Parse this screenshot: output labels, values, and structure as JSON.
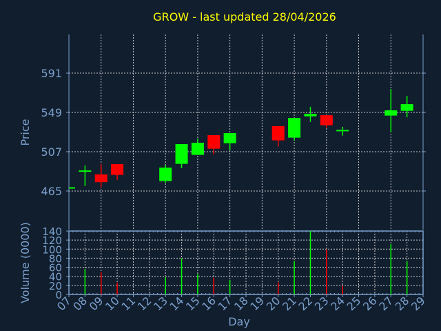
{
  "chart_data": [
    {
      "type": "candlestick",
      "title": "GROW - last updated 28/04/2026",
      "xlabel": "Day",
      "ylabel": "Price",
      "ylim": [
        423.7,
        632.3
      ],
      "yticks": [
        465,
        507,
        549,
        591
      ],
      "ytick_labels": [
        "465",
        "507",
        "549",
        "591"
      ],
      "grid": true,
      "colors": {
        "up": "#00ff00",
        "down": "#ff0000"
      },
      "x": [
        "07",
        "08",
        "09",
        "10",
        "13",
        "14",
        "15",
        "16",
        "17",
        "20",
        "21",
        "22",
        "23",
        "24",
        "27",
        "28"
      ],
      "day_index": [
        7,
        8,
        9,
        10,
        13,
        14,
        15,
        16,
        17,
        20,
        21,
        22,
        23,
        24,
        27,
        28
      ],
      "open": [
        469,
        487,
        482.7,
        493.7,
        475.6,
        494,
        503.6,
        524.7,
        516.1,
        534.3,
        522,
        544.8,
        546,
        530.3,
        545.6,
        550.7
      ],
      "high": [
        469,
        492.3,
        493.6,
        493.7,
        492.8,
        515.1,
        521,
        524.7,
        526.9,
        534.3,
        543.1,
        554.9,
        546,
        533.5,
        574,
        566.7
      ],
      "low": [
        469,
        470.4,
        469,
        477,
        473.8,
        489.5,
        503.6,
        504.3,
        508.7,
        512.4,
        519,
        538.9,
        532.8,
        524.2,
        527.9,
        543.8
      ],
      "close": [
        469,
        487,
        474.4,
        482.2,
        490,
        515.1,
        516.6,
        510.2,
        526.9,
        519.1,
        543.1,
        547.5,
        535.3,
        530.3,
        551.2,
        557.8
      ]
    },
    {
      "type": "bar",
      "ylabel": "Volume (0000)",
      "xlabel": "Day",
      "ylim": [
        0,
        140
      ],
      "yticks": [
        0,
        20,
        40,
        60,
        80,
        100,
        120,
        140
      ],
      "ytick_labels": [
        "0",
        "20",
        "40",
        "60",
        "80",
        "100",
        "120",
        "140"
      ],
      "xtick_labels": [
        "07",
        "08",
        "09",
        "10",
        "11",
        "12",
        "13",
        "14",
        "15",
        "16",
        "17",
        "18",
        "19",
        "20",
        "21",
        "22",
        "23",
        "24",
        "25",
        "26",
        "27",
        "28",
        "29"
      ],
      "x": [
        "08",
        "09",
        "10",
        "13",
        "14",
        "15",
        "16",
        "17",
        "20",
        "21",
        "22",
        "23",
        "24",
        "27",
        "28"
      ],
      "day_index": [
        8,
        9,
        10,
        13,
        14,
        15,
        16,
        17,
        20,
        21,
        22,
        23,
        24,
        27,
        28
      ],
      "values": [
        56,
        49,
        26,
        38,
        80,
        45,
        37,
        32,
        27,
        74,
        140,
        100,
        19,
        111,
        74
      ],
      "direction": [
        "up",
        "down",
        "down",
        "up",
        "up",
        "up",
        "down",
        "up",
        "down",
        "up",
        "up",
        "down",
        "down",
        "up",
        "up"
      ]
    }
  ]
}
